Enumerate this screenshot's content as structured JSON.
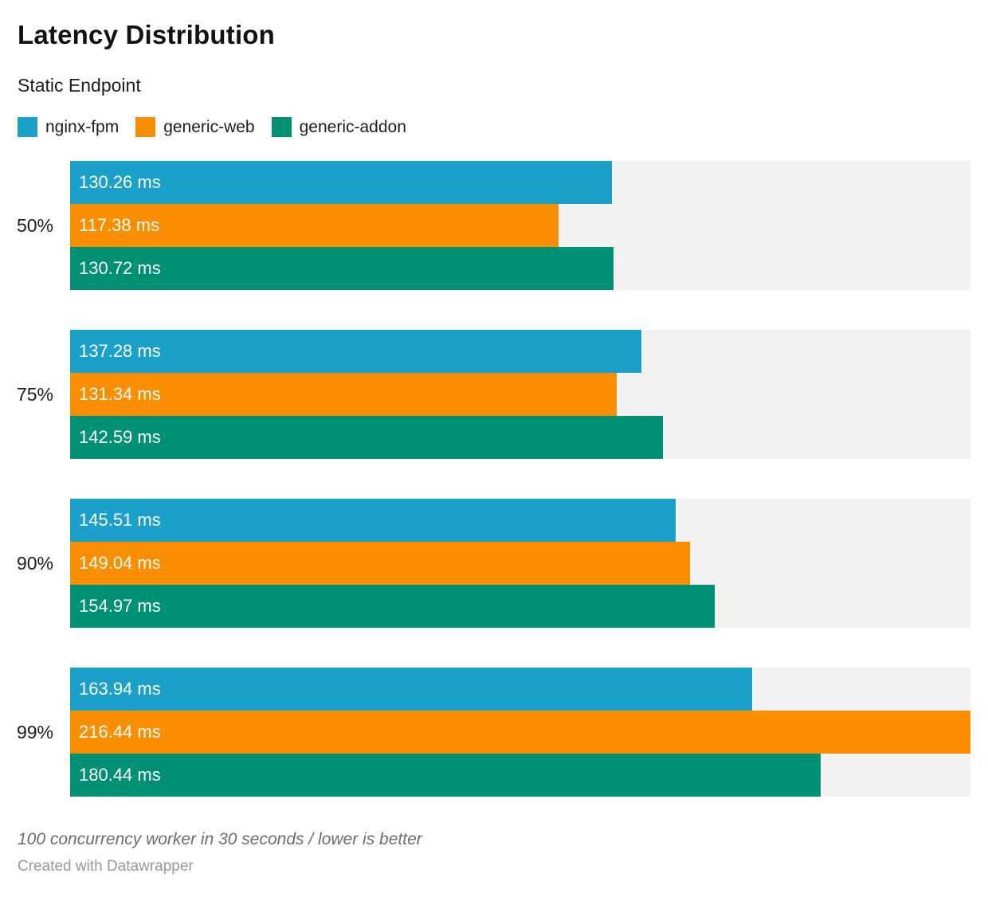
{
  "chart_data": {
    "type": "bar",
    "orientation": "horizontal",
    "title": "Latency Distribution",
    "subtitle": "Static Endpoint",
    "categories": [
      "50%",
      "75%",
      "90%",
      "99%"
    ],
    "series": [
      {
        "name": "nginx-fpm",
        "color": "#1BA1C9",
        "values": [
          130.26,
          137.28,
          145.51,
          163.94
        ]
      },
      {
        "name": "generic-web",
        "color": "#F98E00",
        "values": [
          117.38,
          131.34,
          149.04,
          216.44
        ]
      },
      {
        "name": "generic-addon",
        "color": "#009175",
        "values": [
          130.72,
          142.59,
          154.97,
          180.44
        ]
      }
    ],
    "unit": "ms",
    "xlim": [
      0,
      216.44
    ],
    "grid": false,
    "legend_position": "top",
    "track_color": "#f2f2f2",
    "notes": "100 concurrency worker in 30 seconds / lower is better",
    "byline": "Created with Datawrapper"
  }
}
